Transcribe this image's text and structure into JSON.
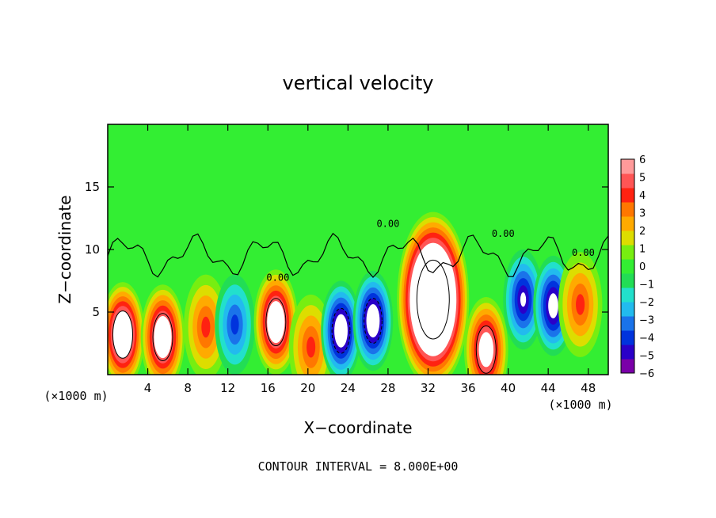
{
  "chart_data": {
    "type": "heatmap",
    "title": "vertical velocity",
    "xlabel": "X−coordinate",
    "ylabel": "Z−coordinate",
    "x_unit_label": "(×1000 m)",
    "x_unit_label_right": "(×1000 m)",
    "xlim": [
      0,
      50
    ],
    "ylim": [
      0,
      20
    ],
    "x_ticks": [
      4,
      8,
      12,
      16,
      20,
      24,
      28,
      32,
      36,
      40,
      44,
      48
    ],
    "y_ticks": [
      5,
      10,
      15
    ],
    "footer": "CONTOUR INTERVAL = 8.000E+00",
    "contour_label": "0.00",
    "colorbar": {
      "ticks": [
        "6",
        "5",
        "4",
        "3",
        "2",
        "1",
        "0",
        "−1",
        "−2",
        "−3",
        "−4",
        "−5",
        "−6"
      ],
      "min": -6,
      "max": 6
    },
    "features": [
      {
        "x": 1.5,
        "z": 3.2,
        "w": 10,
        "kind": "updraft"
      },
      {
        "x": 5.5,
        "z": 3.0,
        "w": 9,
        "kind": "updraft"
      },
      {
        "x": 9.8,
        "z": 3.8,
        "w": 4,
        "kind": "updraft"
      },
      {
        "x": 12.7,
        "z": 4.0,
        "w": -4,
        "kind": "downdraft"
      },
      {
        "x": 16.8,
        "z": 4.2,
        "w": 9,
        "kind": "updraft"
      },
      {
        "x": 20.3,
        "z": 2.2,
        "w": 4,
        "kind": "updraft"
      },
      {
        "x": 23.3,
        "z": 3.5,
        "w": -8,
        "kind": "downdraft"
      },
      {
        "x": 26.5,
        "z": 4.3,
        "w": -8,
        "kind": "downdraft"
      },
      {
        "x": 32.5,
        "z": 6.0,
        "w": 16,
        "kind": "updraft"
      },
      {
        "x": 37.8,
        "z": 2.0,
        "w": 8,
        "kind": "updraft"
      },
      {
        "x": 41.5,
        "z": 6.0,
        "w": -6,
        "kind": "downdraft"
      },
      {
        "x": 44.5,
        "z": 5.5,
        "w": -7,
        "kind": "downdraft"
      },
      {
        "x": 47.2,
        "z": 5.6,
        "w": 4,
        "kind": "updraft"
      }
    ]
  }
}
